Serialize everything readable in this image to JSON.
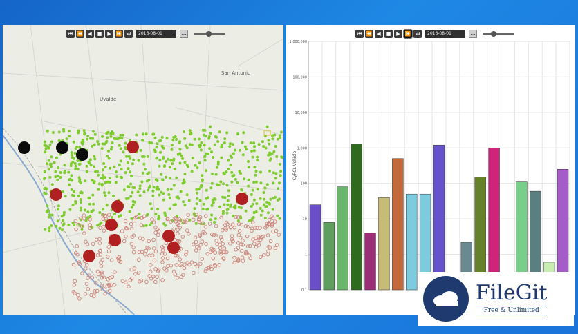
{
  "map": {
    "date_value": "2016-08-01",
    "cities": [
      {
        "name": "San Antonio"
      },
      {
        "name": "Uvalde"
      }
    ],
    "colors": {
      "active": "#7fcc2f",
      "inactive": "#cf8a80",
      "large": "#b02020",
      "black": "#0a0a0a"
    }
  },
  "chart_panel": {
    "date_value": "2016-08-01"
  },
  "toolbar_icons": [
    "first-icon",
    "prev-step-icon",
    "rewind-icon",
    "stop-icon",
    "play-icon",
    "fast-forward-icon",
    "next-step-icon",
    "last-icon"
  ],
  "chart_data": {
    "type": "bar",
    "ylabel": "CyRCL Vehicle",
    "yscale": "log",
    "ylim": [
      0.1,
      1000000
    ],
    "ytick_labels": [
      "1,000,000",
      "100,000",
      "10,000",
      "1,000",
      "100",
      "10",
      "1",
      "0.1"
    ],
    "grid": true,
    "values": [
      25,
      8,
      80,
      1300,
      4,
      40,
      500,
      50,
      50,
      1200,
      null,
      2.2,
      150,
      1000,
      null,
      110,
      60,
      0.6,
      250
    ],
    "colors": [
      "#6a4fc9",
      "#5e9e5e",
      "#6ab66a",
      "#2e6b1e",
      "#9a2f78",
      "#c7bb78",
      "#c46a3a",
      "#7ecbe0",
      "#7ecbe0",
      "#6552cc",
      null,
      "#6a8a92",
      "#65812a",
      "#d0237a",
      null,
      "#78cf8a",
      "#5a7f80",
      "#c9ecb0",
      "#a65cc8"
    ]
  },
  "watermark": {
    "title": "FileGit",
    "subtitle": "Free & Unlimited"
  }
}
